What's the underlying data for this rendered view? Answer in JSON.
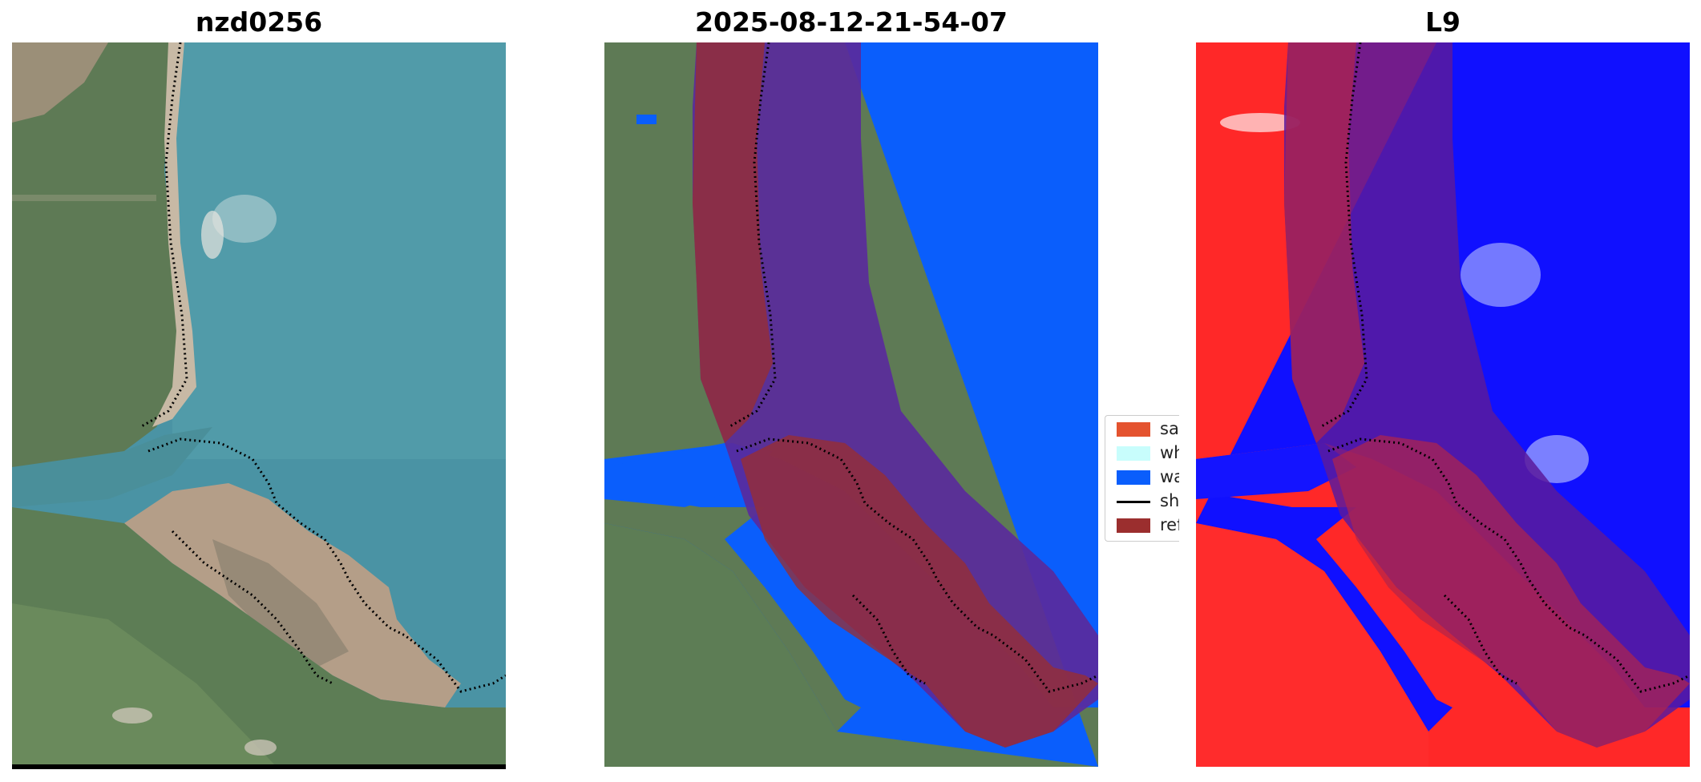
{
  "panels": [
    {
      "title": "nzd0256"
    },
    {
      "title": "2025-08-12-21-54-07"
    },
    {
      "title": "L9"
    }
  ],
  "legend": {
    "items": [
      {
        "label": "sand",
        "color": "#e4532f"
      },
      {
        "label": "whit",
        "color": "#c8fdfc"
      },
      {
        "label": "wate",
        "color": "#0a5efc"
      },
      {
        "label": "shore",
        "color": "#000000"
      },
      {
        "label": "refer",
        "color": "#9b2e2e"
      }
    ]
  },
  "colors": {
    "water_rgb": "#4a93a4",
    "land_green": "#5d7d55",
    "sand": "#b49e88",
    "class_water": "#0a5efc",
    "reference_overlay": "#9b2e2e",
    "buffer_overlay": "#5a2a9c",
    "index_land": "#ff2828",
    "index_water": "#1010ff"
  }
}
